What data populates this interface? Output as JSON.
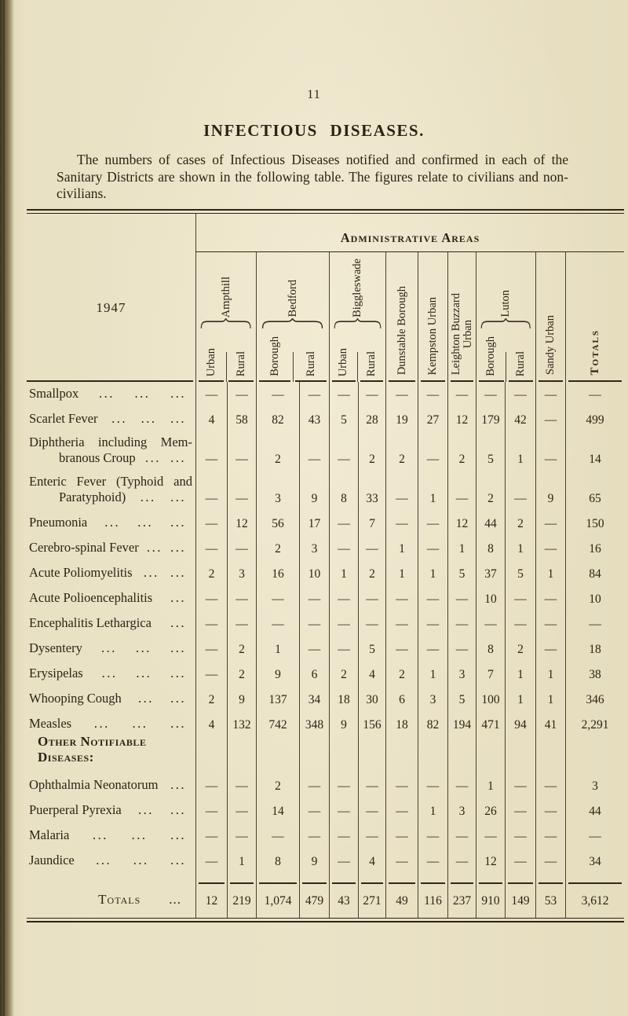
{
  "page": {
    "number": "11",
    "title": "INFECTIOUS DISEASES.",
    "intro": "The numbers of cases of Infectious Diseases notified and confirmed in each of the Sanitary Districts are shown in the following table.  The figures relate to civilians and non-civilians."
  },
  "colors": {
    "paper": "#ebe3c7",
    "ink": "#2c2315",
    "rule": "#4a4030",
    "page_edge": "#3a3220"
  },
  "table": {
    "year_label": "1947",
    "areas_title": "Administrative Areas",
    "leader_dots": "...",
    "column_groups": [
      {
        "label": "Ampthill",
        "subs": [
          "Urban",
          "Rural"
        ]
      },
      {
        "label": "Bedford",
        "subs": [
          "Borough",
          "Rural"
        ]
      },
      {
        "label": "Biggleswade",
        "subs": [
          "Urban",
          "Rural"
        ]
      },
      {
        "label": "Dunstable Borough"
      },
      {
        "label": "Kempston Urban"
      },
      {
        "label": "Leighton Buzzard",
        "label2": "Urban"
      },
      {
        "label": "Luton",
        "subs": [
          "Borough",
          "Rural"
        ]
      },
      {
        "label": "Sandy Urban"
      },
      {
        "label": "Totals",
        "caps": true
      }
    ],
    "columns": [
      "Ampthill Urban",
      "Ampthill Rural",
      "Bedford Borough",
      "Bedford Rural",
      "Biggleswade Urban",
      "Biggleswade Rural",
      "Dunstable Borough",
      "Kempston Urban",
      "Leighton Buzzard Urban",
      "Luton Borough",
      "Luton Rural",
      "Sandy Urban",
      "Totals"
    ],
    "rows": [
      {
        "label": "Smallpox",
        "dots": 3,
        "values": [
          "—",
          "—",
          "—",
          "—",
          "—",
          "—",
          "—",
          "—",
          "—",
          "—",
          "—",
          "—",
          "—"
        ]
      },
      {
        "label": "Scarlet Fever",
        "dots": 3,
        "values": [
          "4",
          "58",
          "82",
          "43",
          "5",
          "28",
          "19",
          "27",
          "12",
          "179",
          "42",
          "—",
          "499"
        ]
      },
      {
        "label": "Diphtheria including Mem-",
        "label2": "branous Croup",
        "dots": 2,
        "justify": true,
        "values": [
          "—",
          "—",
          "2",
          "—",
          "—",
          "2",
          "2",
          "—",
          "2",
          "5",
          "1",
          "—",
          "14"
        ]
      },
      {
        "label": "Enteric Fever (Typhoid and",
        "label2": "Paratyphoid)",
        "dots": 2,
        "justify": true,
        "values": [
          "—",
          "—",
          "3",
          "9",
          "8",
          "33",
          "—",
          "1",
          "—",
          "2",
          "—",
          "9",
          "65"
        ]
      },
      {
        "label": "Pneumonia",
        "dots": 3,
        "values": [
          "—",
          "12",
          "56",
          "17",
          "—",
          "7",
          "—",
          "—",
          "12",
          "44",
          "2",
          "—",
          "150"
        ]
      },
      {
        "label": "Cerebro-spinal Fever",
        "dots": 2,
        "values": [
          "—",
          "—",
          "2",
          "3",
          "—",
          "—",
          "1",
          "—",
          "1",
          "8",
          "1",
          "—",
          "16"
        ]
      },
      {
        "label": "Acute Poliomyelitis",
        "dots": 2,
        "values": [
          "2",
          "3",
          "16",
          "10",
          "1",
          "2",
          "1",
          "1",
          "5",
          "37",
          "5",
          "1",
          "84"
        ]
      },
      {
        "label": "Acute Polioencephalitis",
        "dots": 1,
        "values": [
          "—",
          "—",
          "—",
          "—",
          "—",
          "—",
          "—",
          "—",
          "—",
          "10",
          "—",
          "—",
          "10"
        ]
      },
      {
        "label": "Encephalitis Lethargica",
        "dots": 1,
        "values": [
          "—",
          "—",
          "—",
          "—",
          "—",
          "—",
          "—",
          "—",
          "—",
          "—",
          "—",
          "—",
          "—"
        ]
      },
      {
        "label": "Dysentery",
        "dots": 3,
        "values": [
          "—",
          "2",
          "1",
          "—",
          "—",
          "5",
          "—",
          "—",
          "—",
          "8",
          "2",
          "—",
          "18"
        ]
      },
      {
        "label": "Erysipelas",
        "dots": 3,
        "values": [
          "—",
          "2",
          "9",
          "6",
          "2",
          "4",
          "2",
          "1",
          "3",
          "7",
          "1",
          "1",
          "38"
        ]
      },
      {
        "label": "Whooping Cough",
        "dots": 2,
        "values": [
          "2",
          "9",
          "137",
          "34",
          "18",
          "30",
          "6",
          "3",
          "5",
          "100",
          "1",
          "1",
          "346"
        ]
      },
      {
        "label": "Measles",
        "dots": 3,
        "values": [
          "4",
          "132",
          "742",
          "348",
          "9",
          "156",
          "18",
          "82",
          "194",
          "471",
          "94",
          "41",
          "2,291"
        ]
      },
      {
        "section": true,
        "label": "Other Notifiable Diseases:"
      },
      {
        "label": "Ophthalmia Neonatorum",
        "dots": 1,
        "values": [
          "—",
          "—",
          "2",
          "—",
          "—",
          "—",
          "—",
          "—",
          "—",
          "1",
          "—",
          "—",
          "3"
        ]
      },
      {
        "label": "Puerperal Pyrexia",
        "dots": 2,
        "values": [
          "—",
          "—",
          "14",
          "—",
          "—",
          "—",
          "—",
          "1",
          "3",
          "26",
          "—",
          "—",
          "44"
        ]
      },
      {
        "label": "Malaria",
        "dots": 3,
        "values": [
          "—",
          "—",
          "—",
          "—",
          "—",
          "—",
          "—",
          "—",
          "—",
          "—",
          "—",
          "—",
          "—"
        ]
      },
      {
        "label": "Jaundice",
        "dots": 3,
        "values": [
          "—",
          "1",
          "8",
          "9",
          "—",
          "4",
          "—",
          "—",
          "—",
          "12",
          "—",
          "—",
          "34"
        ]
      }
    ],
    "totals_row": {
      "label": "Totals",
      "dots": 1,
      "values": [
        "12",
        "219",
        "1,074",
        "479",
        "43",
        "271",
        "49",
        "116",
        "237",
        "910",
        "149",
        "53",
        "3,612"
      ]
    }
  }
}
